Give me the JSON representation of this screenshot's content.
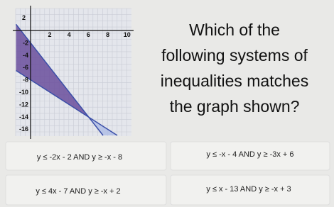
{
  "graph": {
    "x_tick_labels": [
      "2",
      "4",
      "6",
      "8",
      "10"
    ],
    "y_tick_labels": [
      "2",
      "-2",
      "-4",
      "-6",
      "-8",
      "-10",
      "-12",
      "-14",
      "-16"
    ]
  },
  "question": {
    "lines": [
      "Which of the",
      "following systems of",
      "inequalities matches",
      "the graph shown?"
    ]
  },
  "options": [
    "y ≤ -2x - 2 AND y ≥ -x - 8",
    "y ≤ -x - 4 AND y ≥ -3x + 6",
    "y ≤ 4x - 7 AND y ≥ -x + 2",
    "y ≤ x - 13 AND y ≥ -x + 3"
  ]
}
